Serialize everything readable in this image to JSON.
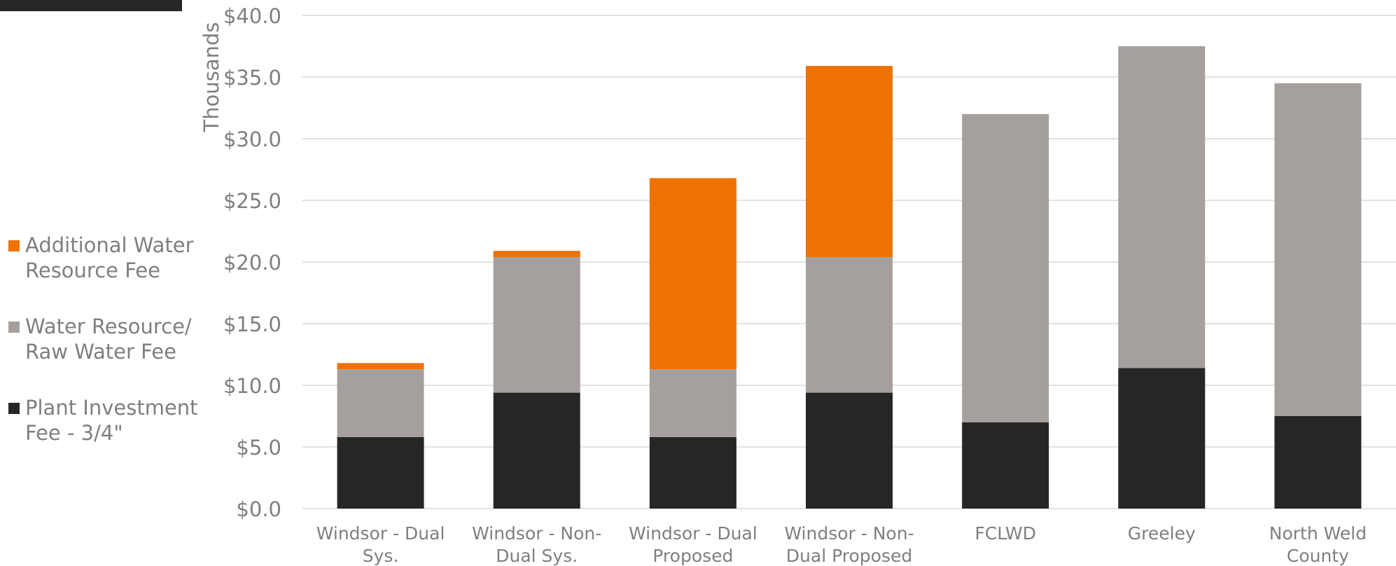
{
  "colors": {
    "plant": "#262626",
    "water": "#a5a09e",
    "additional": "#ee7203",
    "grid": "#d9d9d9",
    "text": "#7f7f7f"
  },
  "legend": {
    "additional": "Additional Water\nResource Fee",
    "water": "Water Resource/\nRaw Water Fee",
    "plant": "Plant Investment\nFee - 3/4\""
  },
  "chart_data": {
    "type": "bar",
    "stacked": true,
    "ylabel": "Thousands",
    "ylim": [
      0,
      40
    ],
    "y_ticks": [
      "$0.0",
      "$5.0",
      "$10.0",
      "$15.0",
      "$20.0",
      "$25.0",
      "$30.0",
      "$35.0",
      "$40.0"
    ],
    "y_tick_values": [
      0,
      5,
      10,
      15,
      20,
      25,
      30,
      35,
      40
    ],
    "grid": true,
    "legend_position": "left",
    "categories": [
      [
        "Windsor - Dual",
        "Sys."
      ],
      [
        "Windsor - Non-",
        "Dual Sys."
      ],
      [
        "Windsor - Dual",
        "Proposed"
      ],
      [
        "Windsor - Non-",
        "Dual Proposed"
      ],
      [
        "FCLWD"
      ],
      [
        "Greeley"
      ],
      [
        "North Weld",
        "County"
      ]
    ],
    "series": [
      {
        "name": "Plant Investment Fee - 3/4\"",
        "key": "plant",
        "values": [
          5.8,
          9.4,
          5.8,
          9.4,
          7.0,
          11.4,
          7.5
        ]
      },
      {
        "name": "Water Resource/ Raw Water Fee",
        "key": "water",
        "values": [
          5.5,
          11.0,
          5.5,
          11.0,
          25.0,
          26.1,
          27.0
        ]
      },
      {
        "name": "Additional Water Resource Fee",
        "key": "additional",
        "values": [
          0.5,
          0.5,
          15.5,
          15.5,
          0,
          0,
          0
        ]
      }
    ]
  }
}
